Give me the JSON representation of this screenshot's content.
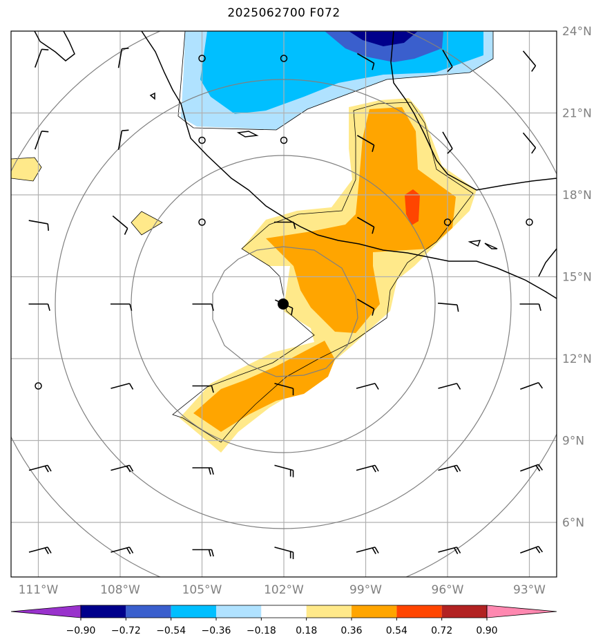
{
  "title": "2025062700 F072",
  "map": {
    "lon_range": [
      -112,
      -92
    ],
    "lat_range": [
      4,
      24
    ],
    "lon_ticks": [
      {
        "value": -111,
        "label": "111°W"
      },
      {
        "value": -108,
        "label": "108°W"
      },
      {
        "value": -105,
        "label": "105°W"
      },
      {
        "value": -102,
        "label": "102°W"
      },
      {
        "value": -99,
        "label": "99°W"
      },
      {
        "value": -96,
        "label": "96°W"
      },
      {
        "value": -93,
        "label": "93°W"
      }
    ],
    "lat_ticks": [
      {
        "value": 24,
        "label": "24°N"
      },
      {
        "value": 21,
        "label": "21°N"
      },
      {
        "value": 18,
        "label": "18°N"
      },
      {
        "value": 15,
        "label": "15°N"
      },
      {
        "value": 12,
        "label": "12°N"
      },
      {
        "value": 9,
        "label": "9°N"
      },
      {
        "value": 6,
        "label": "6°N"
      }
    ],
    "grid": true,
    "storm_center": {
      "lon": -101.8,
      "lat": 14.0
    },
    "range_rings": "concentric circles around storm center",
    "colors": {
      "gridline": "#b0b0b0",
      "ring": "#808080",
      "coast": "#000000"
    }
  },
  "colorbar": {
    "levels": [
      "−0.90",
      "−0.72",
      "−0.54",
      "−0.36",
      "−0.18",
      "0.18",
      "0.36",
      "0.54",
      "0.72",
      "0.90"
    ],
    "colors": [
      "#9932cc",
      "#00008b",
      "#3a5fcd",
      "#00bfff",
      "#b0e2ff",
      "#ffffff",
      "#ffe98a",
      "#ffa500",
      "#ff4500",
      "#b22222",
      "#ff88b0"
    ],
    "extend": "both"
  }
}
